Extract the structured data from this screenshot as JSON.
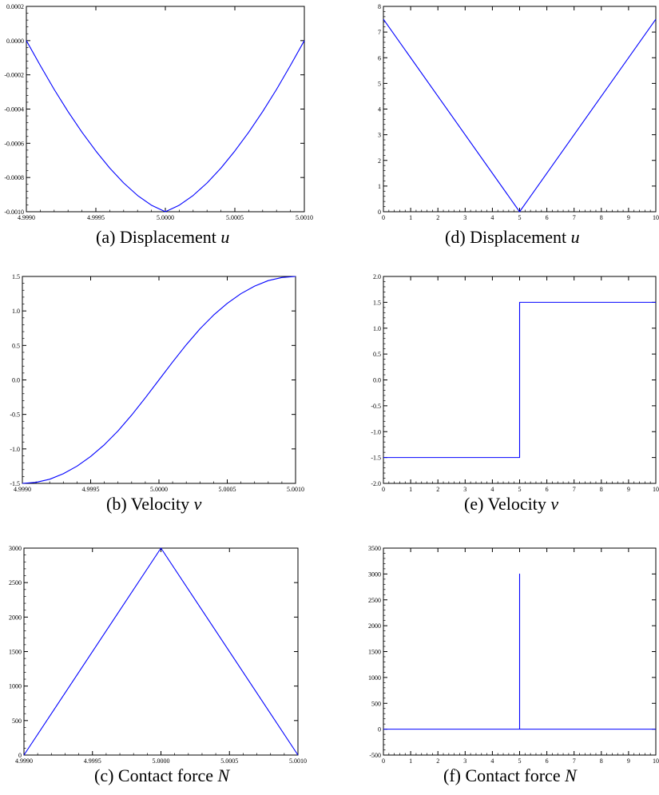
{
  "chart_data": [
    {
      "id": "a",
      "type": "line",
      "caption": {
        "text": "(a) Displacement ",
        "var": "u"
      },
      "xlim": [
        4.999,
        5.001
      ],
      "ylim": [
        -0.001,
        0.0002
      ],
      "xticks": [
        "4.9990",
        "4.9995",
        "5.0000",
        "5.0005",
        "5.0010"
      ],
      "xtick_values": [
        4.999,
        4.9995,
        5.0,
        5.0005,
        5.001
      ],
      "yticks": [
        "-0.0010",
        "-0.0008",
        "-0.0006",
        "-0.0004",
        "-0.0002",
        "0.0000",
        "0.0002"
      ],
      "ytick_values": [
        -0.001,
        -0.0008,
        -0.0006,
        -0.0004,
        -0.0002,
        0.0,
        0.0002
      ],
      "series": [
        {
          "color": "#0000ff",
          "x": [
            4.999,
            4.9991,
            4.9992,
            4.9993,
            4.9994,
            4.9995,
            4.9996,
            4.9997,
            4.9998,
            4.9999,
            5.0,
            5.0001,
            5.0002,
            5.0003,
            5.0004,
            5.0005,
            5.0006,
            5.0007,
            5.0008,
            5.0009,
            5.001
          ],
          "y": [
            0.0,
            -0.000145,
            -0.000285,
            -0.000415,
            -0.000535,
            -0.000645,
            -0.000745,
            -0.000832,
            -0.000905,
            -0.000962,
            -0.001,
            -0.000962,
            -0.000905,
            -0.000832,
            -0.000745,
            -0.000645,
            -0.000535,
            -0.000415,
            -0.000285,
            -0.000145,
            0.0
          ]
        }
      ]
    },
    {
      "id": "b",
      "type": "line",
      "caption": {
        "text": "(b) Velocity ",
        "var": "v"
      },
      "xlim": [
        4.999,
        5.001
      ],
      "ylim": [
        -1.5,
        1.5
      ],
      "xticks": [
        "4.9990",
        "4.9995",
        "5.0000",
        "5.0005",
        "5.0010"
      ],
      "xtick_values": [
        4.999,
        4.9995,
        5.0,
        5.0005,
        5.001
      ],
      "yticks": [
        "-1.5",
        "-1.0",
        "-0.5",
        "0.0",
        "0.5",
        "1.0",
        "1.5"
      ],
      "ytick_values": [
        -1.5,
        -1.0,
        -0.5,
        0.0,
        0.5,
        1.0,
        1.5
      ],
      "series": [
        {
          "color": "#0000ff",
          "x": [
            4.999,
            4.9991,
            4.9992,
            4.9993,
            4.9994,
            4.9995,
            4.9996,
            4.9997,
            4.9998,
            4.9999,
            5.0,
            5.0001,
            5.0002,
            5.0003,
            5.0004,
            5.0005,
            5.0006,
            5.0007,
            5.0008,
            5.0009,
            5.001
          ],
          "y": [
            -1.5,
            -1.485,
            -1.44,
            -1.36,
            -1.25,
            -1.11,
            -0.94,
            -0.74,
            -0.51,
            -0.26,
            0.0,
            0.26,
            0.51,
            0.74,
            0.94,
            1.11,
            1.25,
            1.36,
            1.44,
            1.485,
            1.5
          ]
        }
      ]
    },
    {
      "id": "c",
      "type": "line",
      "caption": {
        "text": "(c) Contact force ",
        "var": "N"
      },
      "xlim": [
        4.999,
        5.001
      ],
      "ylim": [
        0,
        3000
      ],
      "xticks": [
        "4.9990",
        "4.9995",
        "5.0000",
        "5.0005",
        "5.0010"
      ],
      "xtick_values": [
        4.999,
        4.9995,
        5.0,
        5.0005,
        5.001
      ],
      "yticks": [
        "0",
        "500",
        "1000",
        "1500",
        "2000",
        "2500",
        "3000"
      ],
      "ytick_values": [
        0,
        500,
        1000,
        1500,
        2000,
        2500,
        3000
      ],
      "series": [
        {
          "color": "#0000ff",
          "x": [
            4.999,
            5.0,
            5.001
          ],
          "y": [
            0,
            3000,
            0
          ]
        }
      ]
    },
    {
      "id": "d",
      "type": "line",
      "caption": {
        "text": "(d) Displacement ",
        "var": "u"
      },
      "xlim": [
        0,
        10
      ],
      "ylim": [
        0,
        8
      ],
      "xticks": [
        "0",
        "1",
        "2",
        "3",
        "4",
        "5",
        "6",
        "7",
        "8",
        "9",
        "10"
      ],
      "xtick_values": [
        0,
        1,
        2,
        3,
        4,
        5,
        6,
        7,
        8,
        9,
        10
      ],
      "yticks": [
        "0",
        "1",
        "2",
        "3",
        "4",
        "5",
        "6",
        "7",
        "8"
      ],
      "ytick_values": [
        0,
        1,
        2,
        3,
        4,
        5,
        6,
        7,
        8
      ],
      "series": [
        {
          "color": "#0000ff",
          "x": [
            0,
            5,
            10
          ],
          "y": [
            7.5,
            0,
            7.5
          ]
        }
      ]
    },
    {
      "id": "e",
      "type": "line",
      "caption": {
        "text": "(e) Velocity ",
        "var": "v"
      },
      "xlim": [
        0,
        10
      ],
      "ylim": [
        -2.0,
        2.0
      ],
      "xticks": [
        "0",
        "1",
        "2",
        "3",
        "4",
        "5",
        "6",
        "7",
        "8",
        "9",
        "10"
      ],
      "xtick_values": [
        0,
        1,
        2,
        3,
        4,
        5,
        6,
        7,
        8,
        9,
        10
      ],
      "yticks": [
        "-2.0",
        "-1.5",
        "-1.0",
        "-0.5",
        "0.0",
        "0.5",
        "1.0",
        "1.5",
        "2.0"
      ],
      "ytick_values": [
        -2.0,
        -1.5,
        -1.0,
        -0.5,
        0.0,
        0.5,
        1.0,
        1.5,
        2.0
      ],
      "series": [
        {
          "color": "#0000ff",
          "x": [
            0,
            5,
            5,
            10
          ],
          "y": [
            -1.5,
            -1.5,
            1.5,
            1.5
          ]
        }
      ]
    },
    {
      "id": "f",
      "type": "line",
      "caption": {
        "text": "(f) Contact force ",
        "var": "N"
      },
      "xlim": [
        0,
        10
      ],
      "ylim": [
        -500,
        3500
      ],
      "xticks": [
        "0",
        "1",
        "2",
        "3",
        "4",
        "5",
        "6",
        "7",
        "8",
        "9",
        "10"
      ],
      "xtick_values": [
        0,
        1,
        2,
        3,
        4,
        5,
        6,
        7,
        8,
        9,
        10
      ],
      "yticks": [
        "-500",
        "0",
        "500",
        "1000",
        "1500",
        "2000",
        "2500",
        "3000",
        "3500"
      ],
      "ytick_values": [
        -500,
        0,
        500,
        1000,
        1500,
        2000,
        2500,
        3000,
        3500
      ],
      "series": [
        {
          "color": "#0000ff",
          "x": [
            0,
            5,
            5,
            5,
            10
          ],
          "y": [
            0,
            0,
            3000,
            0,
            0
          ]
        }
      ]
    }
  ]
}
